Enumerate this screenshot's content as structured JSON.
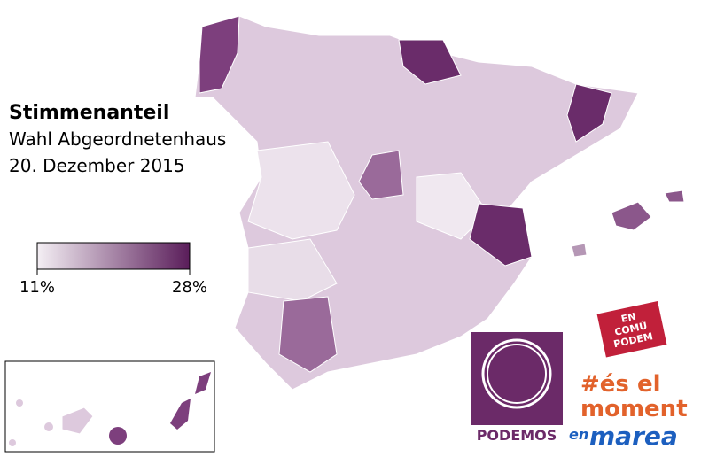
{
  "header": {
    "title": "Stimmenanteil",
    "subtitle": [
      "Wahl Abgeordnetenhaus",
      "20. Dezember 2015"
    ]
  },
  "legend": {
    "range": [
      11,
      28
    ],
    "colors": [
      "#f4eff4",
      "#5a1d5a"
    ],
    "ticks": [
      {
        "value": 11,
        "label": "11%"
      },
      {
        "value": 28,
        "label": "28%"
      }
    ]
  },
  "logos": {
    "podemos": "PODEMOS",
    "en_comu": [
      "EN",
      "COMÚ",
      "PODEM"
    ],
    "es_el_moment": [
      "#és el",
      "moment"
    ],
    "en_marea": [
      "en",
      "marea"
    ]
  }
}
